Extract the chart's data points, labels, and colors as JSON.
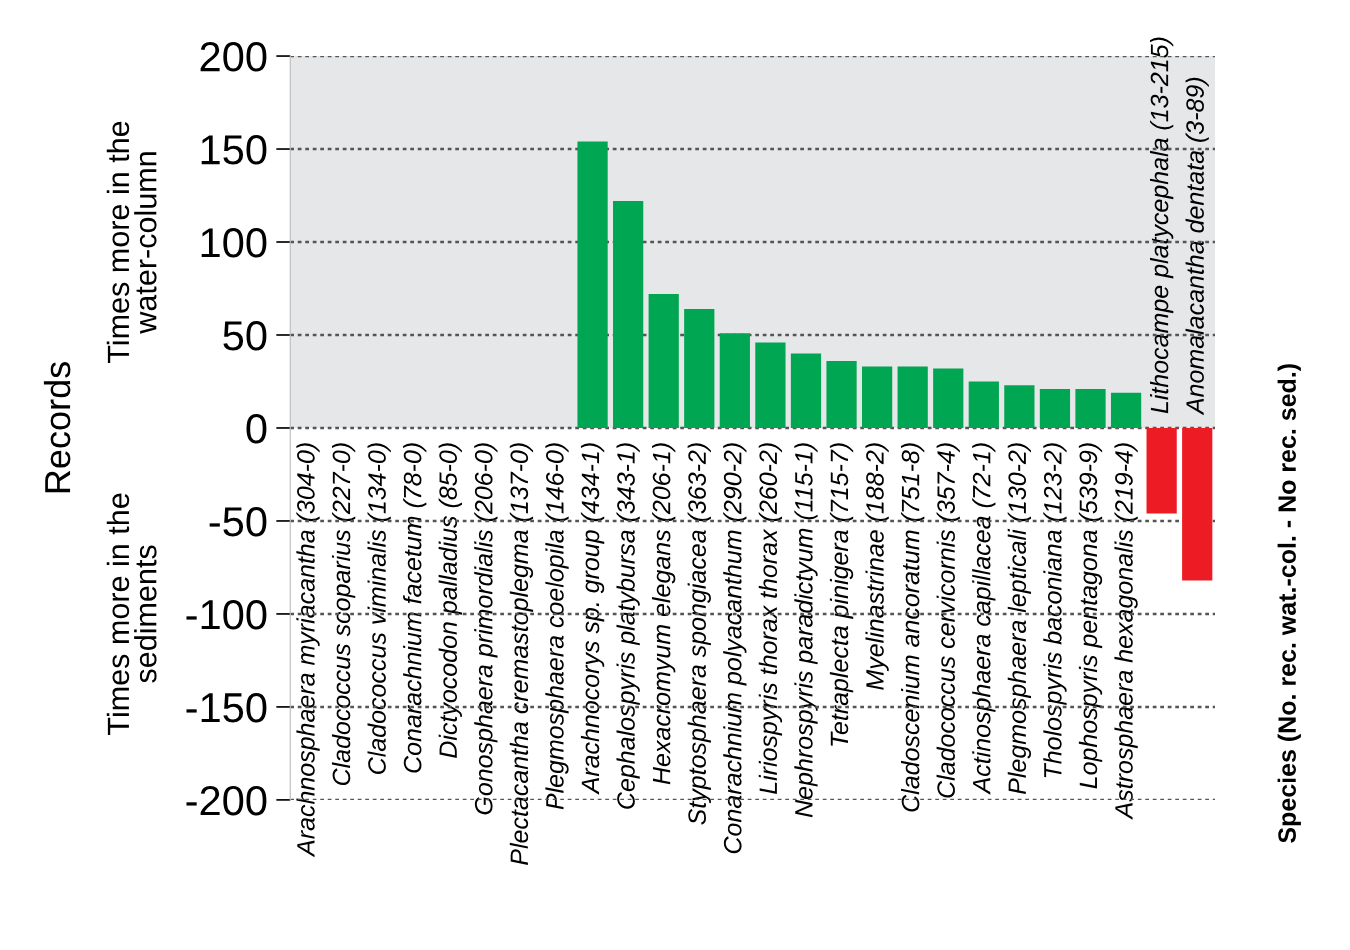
{
  "chart_data": {
    "type": "bar",
    "ylabel": "Records",
    "annotations": [
      "Times more in the\nwater-column",
      "Times more in the\nsediments",
      "Species (No. rec. wat.-col. - No rec. sed.)"
    ],
    "categories": [
      "Arachnosphaera myriacantha (304-0)",
      "Cladococcus scoparius (227-0)",
      "Cladococcus viminalis (134-0)",
      "Conarachnium facetum (78-0)",
      "Dictyocodon palladius (85-0)",
      "Gonosphaera primordialis (206-0)",
      "Plectacantha cremastoplegma (137-0)",
      "Plegmosphaera coelopila (146-0)",
      "Arachnocorys sp. group (434-1)",
      "Cephalospyris platybursa (343-1)",
      "Hexacromyum elegans (206-1)",
      "Styptosphaera spongiacea (363-2)",
      "Conarachnium polyacanthum (290-2)",
      "Liriospyris thorax thorax (260-2)",
      "Nephrospyris paradictyum (115-1)",
      "Tetraplecta pinigera (715-7)",
      "Myelinastrinae (188-2)",
      "Cladoscenium ancoratum (751-8)",
      "Cladococcus cervicornis (357-4)",
      "Actinosphaera capillacea (72-1)",
      "Plegmosphaera lepticali (130-2)",
      "Tholospyris baconiana (123-2)",
      "Lophospyris pentagona (539-9)",
      "Astrosphaera hexagonalis (219-4)",
      "Lithocampe platycephala (13-215)",
      "Anomalacantha dentata (3-89)"
    ],
    "values": [
      null,
      null,
      null,
      null,
      null,
      null,
      null,
      null,
      154,
      122,
      72,
      64,
      51,
      46,
      40,
      36,
      33,
      33,
      32,
      25,
      23,
      21,
      21,
      19,
      -46,
      -82
    ],
    "colors": [
      "#00a651",
      "#00a651",
      "#00a651",
      "#00a651",
      "#00a651",
      "#00a651",
      "#00a651",
      "#00a651",
      "#00a651",
      "#00a651",
      "#00a651",
      "#00a651",
      "#00a651",
      "#00a651",
      "#00a651",
      "#00a651",
      "#00a651",
      "#00a651",
      "#00a651",
      "#00a651",
      "#00a651",
      "#00a651",
      "#00a651",
      "#00a651",
      "#ed1c24",
      "#ed1c24"
    ],
    "bands": [
      {
        "axis": "y",
        "from": 0,
        "to": 200,
        "color": "#e6e7e8"
      }
    ],
    "ylim": [
      -200,
      200
    ],
    "yticks": [
      -200,
      -150,
      -100,
      -50,
      0,
      50,
      100,
      150,
      200
    ],
    "grid": "y"
  }
}
